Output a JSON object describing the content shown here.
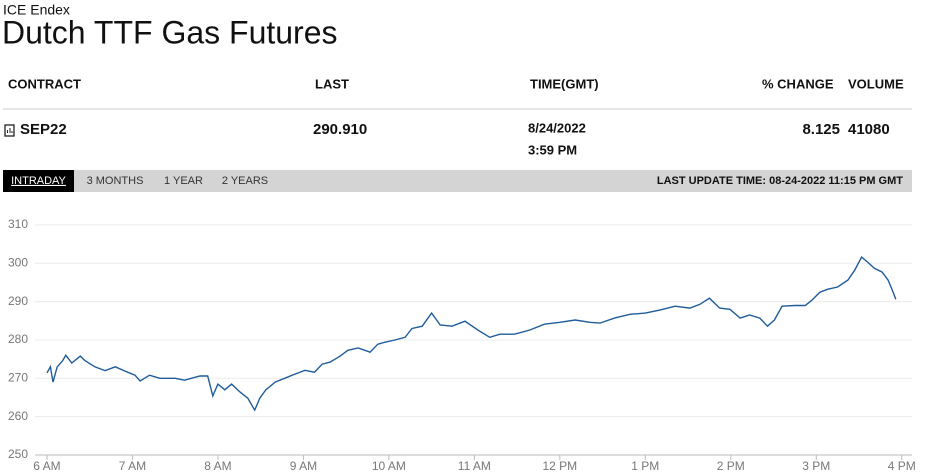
{
  "header": {
    "source": "ICE Endex",
    "title": "Dutch TTF Gas Futures"
  },
  "table": {
    "columns": [
      "CONTRACT",
      "LAST",
      "TIME(GMT)",
      "% CHANGE",
      "VOLUME"
    ],
    "rows": [
      {
        "contract": "SEP22",
        "last": "290.910",
        "date": "8/24/2022",
        "time": "3:59 PM",
        "change": "8.125",
        "volume": "41080"
      }
    ]
  },
  "tabs": {
    "items": [
      "INTRADAY",
      "3 MONTHS",
      "1 YEAR",
      "2 YEARS"
    ],
    "active": 0,
    "last_update": "LAST UPDATE TIME: 08-24-2022 11:15 PM GMT"
  },
  "chart_data": {
    "type": "line",
    "color": "#1f5c99",
    "grid": true,
    "x": [
      6.0,
      6.04,
      6.07,
      6.12,
      6.18,
      6.22,
      6.29,
      6.39,
      6.44,
      6.56,
      6.68,
      6.8,
      6.91,
      7.03,
      7.09,
      7.2,
      7.32,
      7.5,
      7.61,
      7.79,
      7.88,
      7.94,
      8.0,
      8.08,
      8.16,
      8.26,
      8.35,
      8.43,
      8.49,
      8.56,
      8.67,
      8.78,
      8.9,
      9.02,
      9.13,
      9.22,
      9.31,
      9.43,
      9.52,
      9.64,
      9.78,
      9.87,
      9.95,
      10.07,
      10.19,
      10.27,
      10.39,
      10.5,
      10.6,
      10.74,
      10.89,
      11.04,
      11.18,
      11.3,
      11.47,
      11.65,
      11.82,
      12.0,
      12.18,
      12.35,
      12.47,
      12.64,
      12.82,
      13.0,
      13.17,
      13.35,
      13.52,
      13.64,
      13.75,
      13.87,
      13.99,
      14.11,
      14.22,
      14.34,
      14.43,
      14.51,
      14.6,
      14.75,
      14.87,
      14.95,
      15.04,
      15.13,
      15.25,
      15.37,
      15.45,
      15.53,
      15.6,
      15.68,
      15.77,
      15.84,
      15.89,
      15.93
    ],
    "values": [
      271.4,
      273.0,
      269.0,
      273.0,
      274.5,
      276.0,
      274.0,
      275.8,
      274.7,
      273.0,
      272.0,
      273.0,
      271.9,
      270.8,
      269.3,
      270.8,
      270.0,
      270.0,
      269.5,
      270.6,
      270.6,
      265.4,
      268.5,
      267.0,
      268.5,
      266.4,
      264.8,
      261.7,
      264.8,
      267.0,
      269.0,
      270.0,
      271.1,
      272.1,
      271.6,
      273.7,
      274.2,
      275.8,
      277.3,
      277.9,
      276.8,
      278.9,
      279.4,
      280.0,
      280.7,
      283.0,
      283.6,
      287.0,
      283.9,
      283.6,
      284.9,
      282.6,
      280.7,
      281.5,
      281.5,
      282.6,
      284.1,
      284.6,
      285.2,
      284.6,
      284.4,
      285.7,
      286.7,
      287.0,
      287.8,
      288.8,
      288.3,
      289.3,
      290.9,
      288.3,
      288.0,
      285.7,
      286.5,
      285.7,
      283.6,
      285.2,
      288.8,
      289.0,
      289.0,
      290.4,
      292.4,
      293.2,
      293.8,
      295.6,
      298.2,
      301.6,
      300.3,
      298.7,
      297.7,
      295.6,
      293.0,
      290.6
    ],
    "xlim": [
      5.86,
      16.12
    ],
    "xticks": [
      {
        "value": 6,
        "label": "6 AM"
      },
      {
        "value": 7,
        "label": "7 AM"
      },
      {
        "value": 8,
        "label": "8 AM"
      },
      {
        "value": 9,
        "label": "9 AM"
      },
      {
        "value": 10,
        "label": "10 AM"
      },
      {
        "value": 11,
        "label": "11 AM"
      },
      {
        "value": 12,
        "label": "12 PM"
      },
      {
        "value": 13,
        "label": "1 PM"
      },
      {
        "value": 14,
        "label": "2 PM"
      },
      {
        "value": 15,
        "label": "3 PM"
      },
      {
        "value": 16,
        "label": "4 PM"
      }
    ],
    "ylim": [
      250,
      316.5
    ],
    "yticks": [
      250,
      260,
      270,
      280,
      290,
      300,
      310
    ]
  }
}
